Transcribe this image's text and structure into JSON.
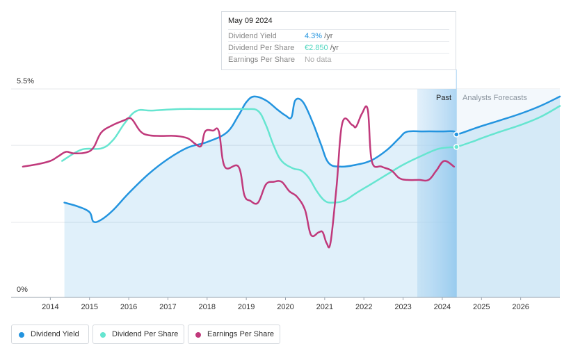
{
  "tooltip": {
    "date": "May 09 2024",
    "rows": [
      {
        "name": "Dividend Yield",
        "value": "4.3%",
        "unit": " /yr",
        "color": "#2394df"
      },
      {
        "name": "Dividend Per Share",
        "value": "€2.850",
        "unit": " /yr",
        "color": "#66e5d0"
      },
      {
        "name": "Earnings Per Share",
        "value": "No data",
        "unit": "",
        "color": "#aaaaaa"
      }
    ]
  },
  "regions": {
    "past_label": "Past",
    "forecast_label": "Analysts Forecasts"
  },
  "legend": [
    {
      "label": "Dividend Yield",
      "color": "#2394df"
    },
    {
      "label": "Dividend Per Share",
      "color": "#66e5d0"
    },
    {
      "label": "Earnings Per Share",
      "color": "#c0397b"
    }
  ],
  "chart_data": {
    "type": "line",
    "x_ticks": [
      "2014",
      "2015",
      "2016",
      "2017",
      "2018",
      "2019",
      "2020",
      "2021",
      "2022",
      "2023",
      "2024",
      "2025",
      "2026"
    ],
    "y_tick_labels": [
      "5.5%",
      "0%"
    ],
    "ylim": [
      0,
      5.5
    ],
    "xlim": [
      2013.0,
      2027.0
    ],
    "grid": true,
    "legend_position": "bottom-left",
    "past_end": 2024.36,
    "series": [
      {
        "name": "Dividend Yield",
        "axis": "primary",
        "color": "#2394df",
        "area": true,
        "points": [
          [
            2014.36,
            2.5
          ],
          [
            2014.7,
            2.4
          ],
          [
            2015.0,
            2.25
          ],
          [
            2015.1,
            2.0
          ],
          [
            2015.3,
            2.05
          ],
          [
            2015.6,
            2.3
          ],
          [
            2016.0,
            2.75
          ],
          [
            2016.5,
            3.25
          ],
          [
            2017.0,
            3.65
          ],
          [
            2017.5,
            3.95
          ],
          [
            2018.0,
            4.1
          ],
          [
            2018.5,
            4.35
          ],
          [
            2018.8,
            4.8
          ],
          [
            2019.0,
            5.15
          ],
          [
            2019.2,
            5.3
          ],
          [
            2019.5,
            5.2
          ],
          [
            2019.8,
            4.95
          ],
          [
            2020.0,
            4.8
          ],
          [
            2020.15,
            4.75
          ],
          [
            2020.25,
            5.2
          ],
          [
            2020.45,
            5.15
          ],
          [
            2020.7,
            4.6
          ],
          [
            2020.9,
            4.05
          ],
          [
            2021.1,
            3.55
          ],
          [
            2021.4,
            3.45
          ],
          [
            2021.8,
            3.5
          ],
          [
            2022.2,
            3.62
          ],
          [
            2022.6,
            3.9
          ],
          [
            2022.9,
            4.2
          ],
          [
            2023.1,
            4.37
          ],
          [
            2023.5,
            4.38
          ],
          [
            2024.0,
            4.38
          ],
          [
            2024.3,
            4.38
          ],
          [
            2024.36,
            4.3
          ],
          [
            2024.8,
            4.45
          ],
          [
            2025.0,
            4.52
          ],
          [
            2025.5,
            4.68
          ],
          [
            2026.0,
            4.85
          ],
          [
            2026.5,
            5.05
          ],
          [
            2027.0,
            5.3
          ]
        ]
      },
      {
        "name": "Dividend Per Share",
        "axis": "secondary",
        "color": "#66e5d0",
        "points": [
          [
            2014.3,
            3.6
          ],
          [
            2014.8,
            3.9
          ],
          [
            2015.3,
            3.93
          ],
          [
            2015.6,
            4.15
          ],
          [
            2015.9,
            4.6
          ],
          [
            2016.2,
            4.92
          ],
          [
            2016.6,
            4.93
          ],
          [
            2017.3,
            4.97
          ],
          [
            2018.0,
            4.97
          ],
          [
            2018.5,
            4.97
          ],
          [
            2019.0,
            4.97
          ],
          [
            2019.3,
            4.92
          ],
          [
            2019.5,
            4.55
          ],
          [
            2019.7,
            4.0
          ],
          [
            2019.9,
            3.6
          ],
          [
            2020.2,
            3.4
          ],
          [
            2020.4,
            3.35
          ],
          [
            2020.6,
            3.15
          ],
          [
            2020.8,
            2.8
          ],
          [
            2021.0,
            2.55
          ],
          [
            2021.2,
            2.5
          ],
          [
            2021.5,
            2.55
          ],
          [
            2021.8,
            2.75
          ],
          [
            2022.2,
            3.0
          ],
          [
            2022.6,
            3.25
          ],
          [
            2023.0,
            3.5
          ],
          [
            2023.5,
            3.75
          ],
          [
            2023.9,
            3.92
          ],
          [
            2024.2,
            3.96
          ],
          [
            2024.36,
            3.97
          ],
          [
            2024.8,
            4.12
          ],
          [
            2025.0,
            4.2
          ],
          [
            2025.5,
            4.38
          ],
          [
            2026.0,
            4.55
          ],
          [
            2026.5,
            4.76
          ],
          [
            2027.0,
            5.05
          ]
        ]
      },
      {
        "name": "Earnings Per Share",
        "axis": "secondary",
        "color": "#c0397b",
        "points": [
          [
            2013.3,
            3.45
          ],
          [
            2013.7,
            3.52
          ],
          [
            2014.0,
            3.6
          ],
          [
            2014.2,
            3.72
          ],
          [
            2014.4,
            3.84
          ],
          [
            2014.6,
            3.8
          ],
          [
            2014.9,
            3.82
          ],
          [
            2015.1,
            3.95
          ],
          [
            2015.3,
            4.35
          ],
          [
            2015.6,
            4.55
          ],
          [
            2015.9,
            4.68
          ],
          [
            2016.0,
            4.73
          ],
          [
            2016.1,
            4.68
          ],
          [
            2016.3,
            4.38
          ],
          [
            2016.5,
            4.28
          ],
          [
            2016.8,
            4.26
          ],
          [
            2017.2,
            4.26
          ],
          [
            2017.5,
            4.2
          ],
          [
            2017.7,
            4.05
          ],
          [
            2017.85,
            4.0
          ],
          [
            2017.95,
            4.38
          ],
          [
            2018.15,
            4.4
          ],
          [
            2018.3,
            4.38
          ],
          [
            2018.45,
            3.45
          ],
          [
            2018.8,
            3.45
          ],
          [
            2018.95,
            2.7
          ],
          [
            2019.1,
            2.55
          ],
          [
            2019.3,
            2.5
          ],
          [
            2019.5,
            2.98
          ],
          [
            2019.7,
            3.05
          ],
          [
            2019.9,
            3.05
          ],
          [
            2020.1,
            2.8
          ],
          [
            2020.3,
            2.65
          ],
          [
            2020.5,
            2.3
          ],
          [
            2020.65,
            1.65
          ],
          [
            2020.85,
            1.72
          ],
          [
            2020.95,
            1.72
          ],
          [
            2021.05,
            1.43
          ],
          [
            2021.15,
            1.45
          ],
          [
            2021.3,
            2.9
          ],
          [
            2021.45,
            4.6
          ],
          [
            2021.7,
            4.55
          ],
          [
            2021.8,
            4.5
          ],
          [
            2021.95,
            4.85
          ],
          [
            2022.1,
            4.95
          ],
          [
            2022.2,
            3.6
          ],
          [
            2022.45,
            3.45
          ],
          [
            2022.7,
            3.35
          ],
          [
            2022.9,
            3.15
          ],
          [
            2023.1,
            3.1
          ],
          [
            2023.4,
            3.1
          ],
          [
            2023.65,
            3.1
          ],
          [
            2023.85,
            3.35
          ],
          [
            2024.05,
            3.6
          ],
          [
            2024.3,
            3.45
          ]
        ]
      }
    ]
  }
}
